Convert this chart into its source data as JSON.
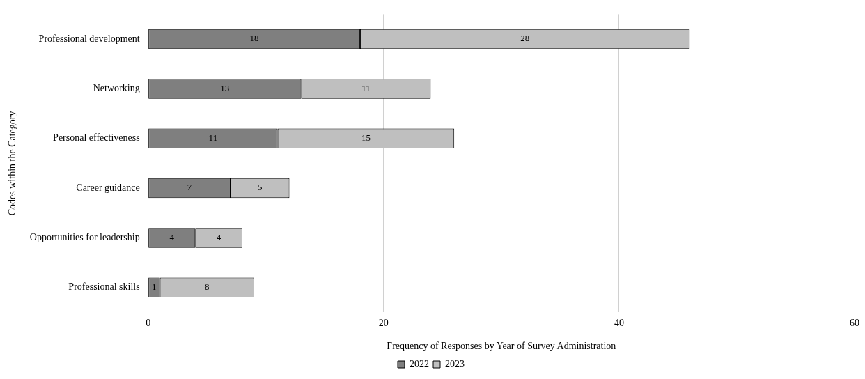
{
  "chart_data": {
    "type": "bar",
    "orientation": "horizontal",
    "stacked": true,
    "xlabel": "Frequency of Responses by Year of Survey Administration",
    "ylabel": "Codes within the Category",
    "categories": [
      "Professional development",
      "Networking",
      "Personal effectiveness",
      "Career guidance",
      "Opportunities for leadership",
      "Professional skills"
    ],
    "series": [
      {
        "name": "2022",
        "color": "#7f7f7f",
        "values": [
          18,
          13,
          11,
          7,
          4,
          1
        ]
      },
      {
        "name": "2023",
        "color": "#bfbfbf",
        "values": [
          28,
          11,
          15,
          5,
          4,
          8
        ]
      }
    ],
    "xlim": [
      0,
      60
    ],
    "xticks": [
      0,
      20,
      40,
      60
    ],
    "grid": "x",
    "legend": "bottom",
    "data_labels": true
  }
}
